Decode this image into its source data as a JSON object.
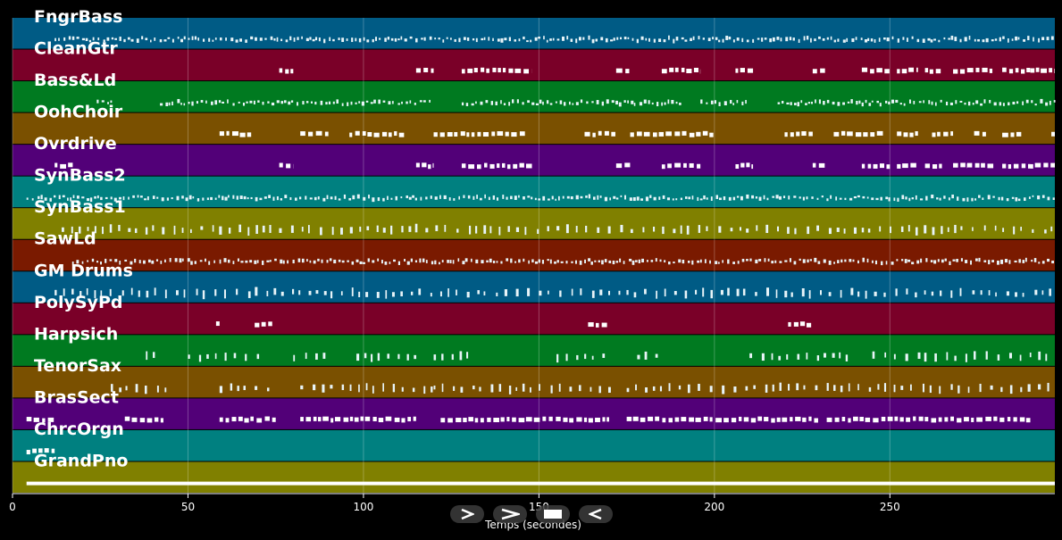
{
  "chart_data": {
    "type": "piano-roll",
    "title": "",
    "xlabel": "Temps (secondes)",
    "ylabel": "",
    "xlim": [
      0,
      297
    ],
    "x_ticks": [
      0,
      50,
      100,
      150,
      200,
      250
    ],
    "grid": true,
    "tracks": [
      {
        "name": "FngrBass",
        "color": "#005b85",
        "segments": [
          [
            12,
            297
          ]
        ],
        "style": "dense"
      },
      {
        "name": "CleanGtr",
        "color": "#7a0028",
        "segments": [
          [
            76,
            80
          ],
          [
            115,
            120
          ],
          [
            128,
            148
          ],
          [
            172,
            176
          ],
          [
            185,
            196
          ],
          [
            206,
            211
          ],
          [
            228,
            232
          ],
          [
            242,
            250
          ],
          [
            252,
            258
          ],
          [
            260,
            265
          ],
          [
            268,
            272
          ],
          [
            272,
            280
          ],
          [
            282,
            290
          ],
          [
            290,
            297
          ]
        ],
        "style": "blocks"
      },
      {
        "name": "Bass&Ld",
        "color": "#007a20",
        "segments": [
          [
            24,
            28
          ],
          [
            42,
            120
          ],
          [
            128,
            190
          ],
          [
            196,
            210
          ],
          [
            218,
            297
          ]
        ],
        "style": "dense"
      },
      {
        "name": "OohChoir",
        "color": "#7a5000",
        "segments": [
          [
            59,
            68
          ],
          [
            82,
            90
          ],
          [
            96,
            112
          ],
          [
            120,
            146
          ],
          [
            163,
            172
          ],
          [
            176,
            200
          ],
          [
            220,
            228
          ],
          [
            234,
            248
          ],
          [
            252,
            258
          ],
          [
            262,
            268
          ],
          [
            274,
            278
          ],
          [
            282,
            288
          ],
          [
            296,
            297
          ]
        ],
        "style": "blocks"
      },
      {
        "name": "Ovrdrive",
        "color": "#520078",
        "segments": [
          [
            12,
            18
          ],
          [
            76,
            80
          ],
          [
            115,
            120
          ],
          [
            128,
            148
          ],
          [
            172,
            176
          ],
          [
            185,
            196
          ],
          [
            206,
            211
          ],
          [
            228,
            232
          ],
          [
            242,
            250
          ],
          [
            252,
            258
          ],
          [
            260,
            265
          ],
          [
            268,
            272
          ],
          [
            272,
            280
          ],
          [
            282,
            290
          ],
          [
            290,
            297
          ]
        ],
        "style": "blocks"
      },
      {
        "name": "SynBass2",
        "color": "#008080",
        "segments": [
          [
            4,
            297
          ]
        ],
        "style": "dense"
      },
      {
        "name": "SynBass1",
        "color": "#808000",
        "segments": [
          [
            14,
            297
          ]
        ],
        "style": "sparse"
      },
      {
        "name": "SawLd",
        "color": "#7a1a00",
        "segments": [
          [
            17,
            297
          ]
        ],
        "style": "dense"
      },
      {
        "name": "GM Drums",
        "color": "#005b85",
        "segments": [
          [
            12,
            297
          ]
        ],
        "style": "sparse"
      },
      {
        "name": "PolySyPd",
        "color": "#7a0028",
        "segments": [
          [
            58,
            59
          ],
          [
            69,
            74
          ],
          [
            164,
            170
          ],
          [
            221,
            228
          ]
        ],
        "style": "blocks"
      },
      {
        "name": "Harpsich",
        "color": "#007a20",
        "segments": [
          [
            38,
            41
          ],
          [
            50,
            70
          ],
          [
            80,
            90
          ],
          [
            98,
            115
          ],
          [
            120,
            130
          ],
          [
            155,
            170
          ],
          [
            178,
            186
          ],
          [
            210,
            240
          ],
          [
            245,
            297
          ]
        ],
        "style": "sparse"
      },
      {
        "name": "TenorSax",
        "color": "#7a5000",
        "segments": [
          [
            28,
            44
          ],
          [
            59,
            75
          ],
          [
            82,
            120
          ],
          [
            120,
            170
          ],
          [
            175,
            230
          ],
          [
            232,
            297
          ]
        ],
        "style": "sparse"
      },
      {
        "name": "BrasSect",
        "color": "#520078",
        "segments": [
          [
            4,
            12
          ],
          [
            32,
            43
          ],
          [
            59,
            75
          ],
          [
            82,
            115
          ],
          [
            122,
            170
          ],
          [
            175,
            230
          ],
          [
            232,
            290
          ]
        ],
        "style": "blocks"
      },
      {
        "name": "ChrcOrgn",
        "color": "#008080",
        "segments": [
          [
            4,
            12
          ]
        ],
        "style": "blocks"
      },
      {
        "name": "GrandPno",
        "color": "#808000",
        "segments": [
          [
            4,
            297
          ]
        ],
        "style": "line"
      }
    ]
  },
  "controls": [
    {
      "name": "play-forward-button",
      "icon": "play-outline-icon"
    },
    {
      "name": "fast-forward-button",
      "icon": "chevron-right-icon"
    },
    {
      "name": "stop-button",
      "icon": "stop-icon"
    },
    {
      "name": "play-reverse-button",
      "icon": "play-reverse-outline-icon"
    }
  ]
}
